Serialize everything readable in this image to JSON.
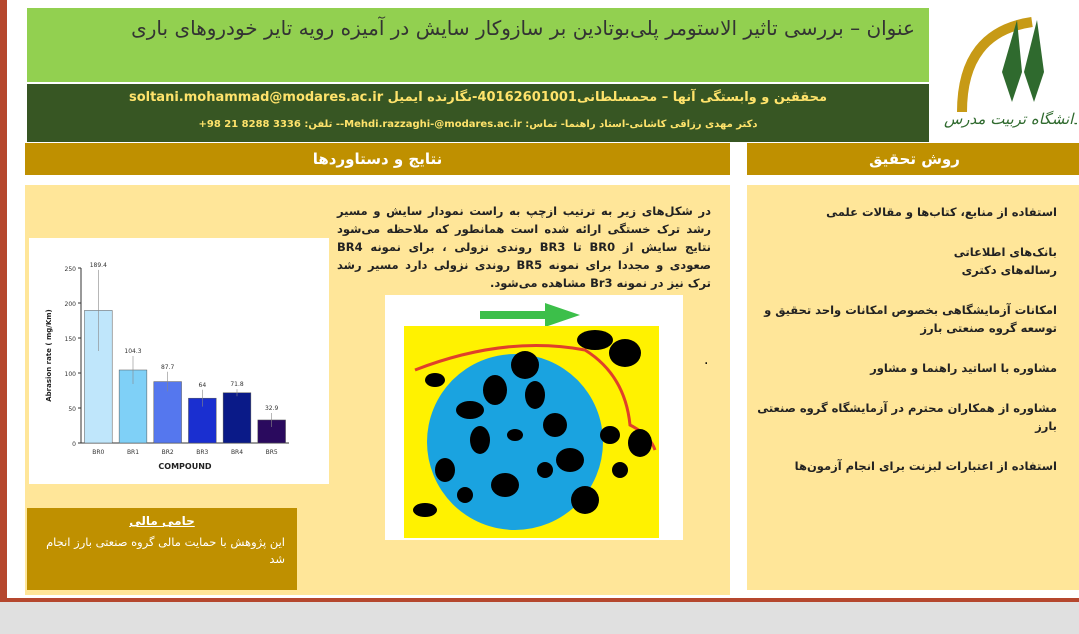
{
  "header": {
    "title": "عنوان – بررسی تاثیر الاستومر پلی‌بوتادین بر سازوکار سایش در آمیزه رویه تایر خودروهای باری",
    "authors_line": "محققین و وابستگی آنها – محمسلطانی40162601001-نگارنده ایمیل soltani.mohammad@modares.ac.ir",
    "advisor_line": "دکتر مهدی رزاقی کاشانی-استاد راهنما- تماس: Mehdi.razzaghi-@modares.ac.ir-- تلفن: 3336 8288 21 98+",
    "logo_text": "دانشگاه تربیت مدرس"
  },
  "results": {
    "heading": "نتایج و دستاوردها",
    "body": "در شکل‌های زیر به ترتیب ازچپ به راست نمودار سایش و مسیر رشد ترک خستگی ارائه شده است همانطور که ملاحظه می‌شود نتایج سایش از BR0 تا BR3 روندی نزولی ، برای نمونه BR4 صعودی و مجددا برای نمونه BR5 روندی نزولی دارد مسیر رشد ترک نیز در نمونه Br3 مشاهده می‌شود.",
    "dot": "."
  },
  "method": {
    "heading": "روش تحقیق",
    "items": [
      "استفاده از منابع، کتاب‌ها و مقالات علمی",
      "بانک‌های اطلاعاتی\nرساله‌های دکتری",
      "امکانات آزمایشگاهی بخصوص امکانات واحد تحقیق و توسعه گروه صنعتی بارز",
      "مشاوره با اساتید راهنما و مشاور",
      "مشاوره از همکاران محترم در آزمایشگاه گروه صنعتی بارز",
      "استفاده از اعتبارات لبزنت برای انجام آزمون‌ها"
    ]
  },
  "sponsor": {
    "title": "حامی مالی",
    "text": "این پژوهش با حمایت مالی گروه صنعتی بارز انجام شد"
  },
  "chart_data": {
    "type": "bar",
    "categories": [
      "BR0",
      "BR1",
      "BR2",
      "BR3",
      "BR4",
      "BR5"
    ],
    "values": [
      189.4,
      104.3,
      87.7,
      64,
      71.8,
      32.9
    ],
    "errors": [
      58,
      20,
      14,
      12,
      5,
      10
    ],
    "labels": [
      "189.4",
      "104.3",
      "87.7",
      "64",
      "71.8",
      "32.9"
    ],
    "colors": [
      "#bfe6fb",
      "#7fd0f7",
      "#5577ee",
      "#1a2fd0",
      "#0a1a88",
      "#2a0a5e"
    ],
    "xlabel": "COMPOUND",
    "ylabel": "Abrasion rate ( mg/Km)",
    "ylim": [
      0,
      250
    ],
    "yticks": [
      0,
      50,
      100,
      150,
      200,
      250
    ]
  }
}
